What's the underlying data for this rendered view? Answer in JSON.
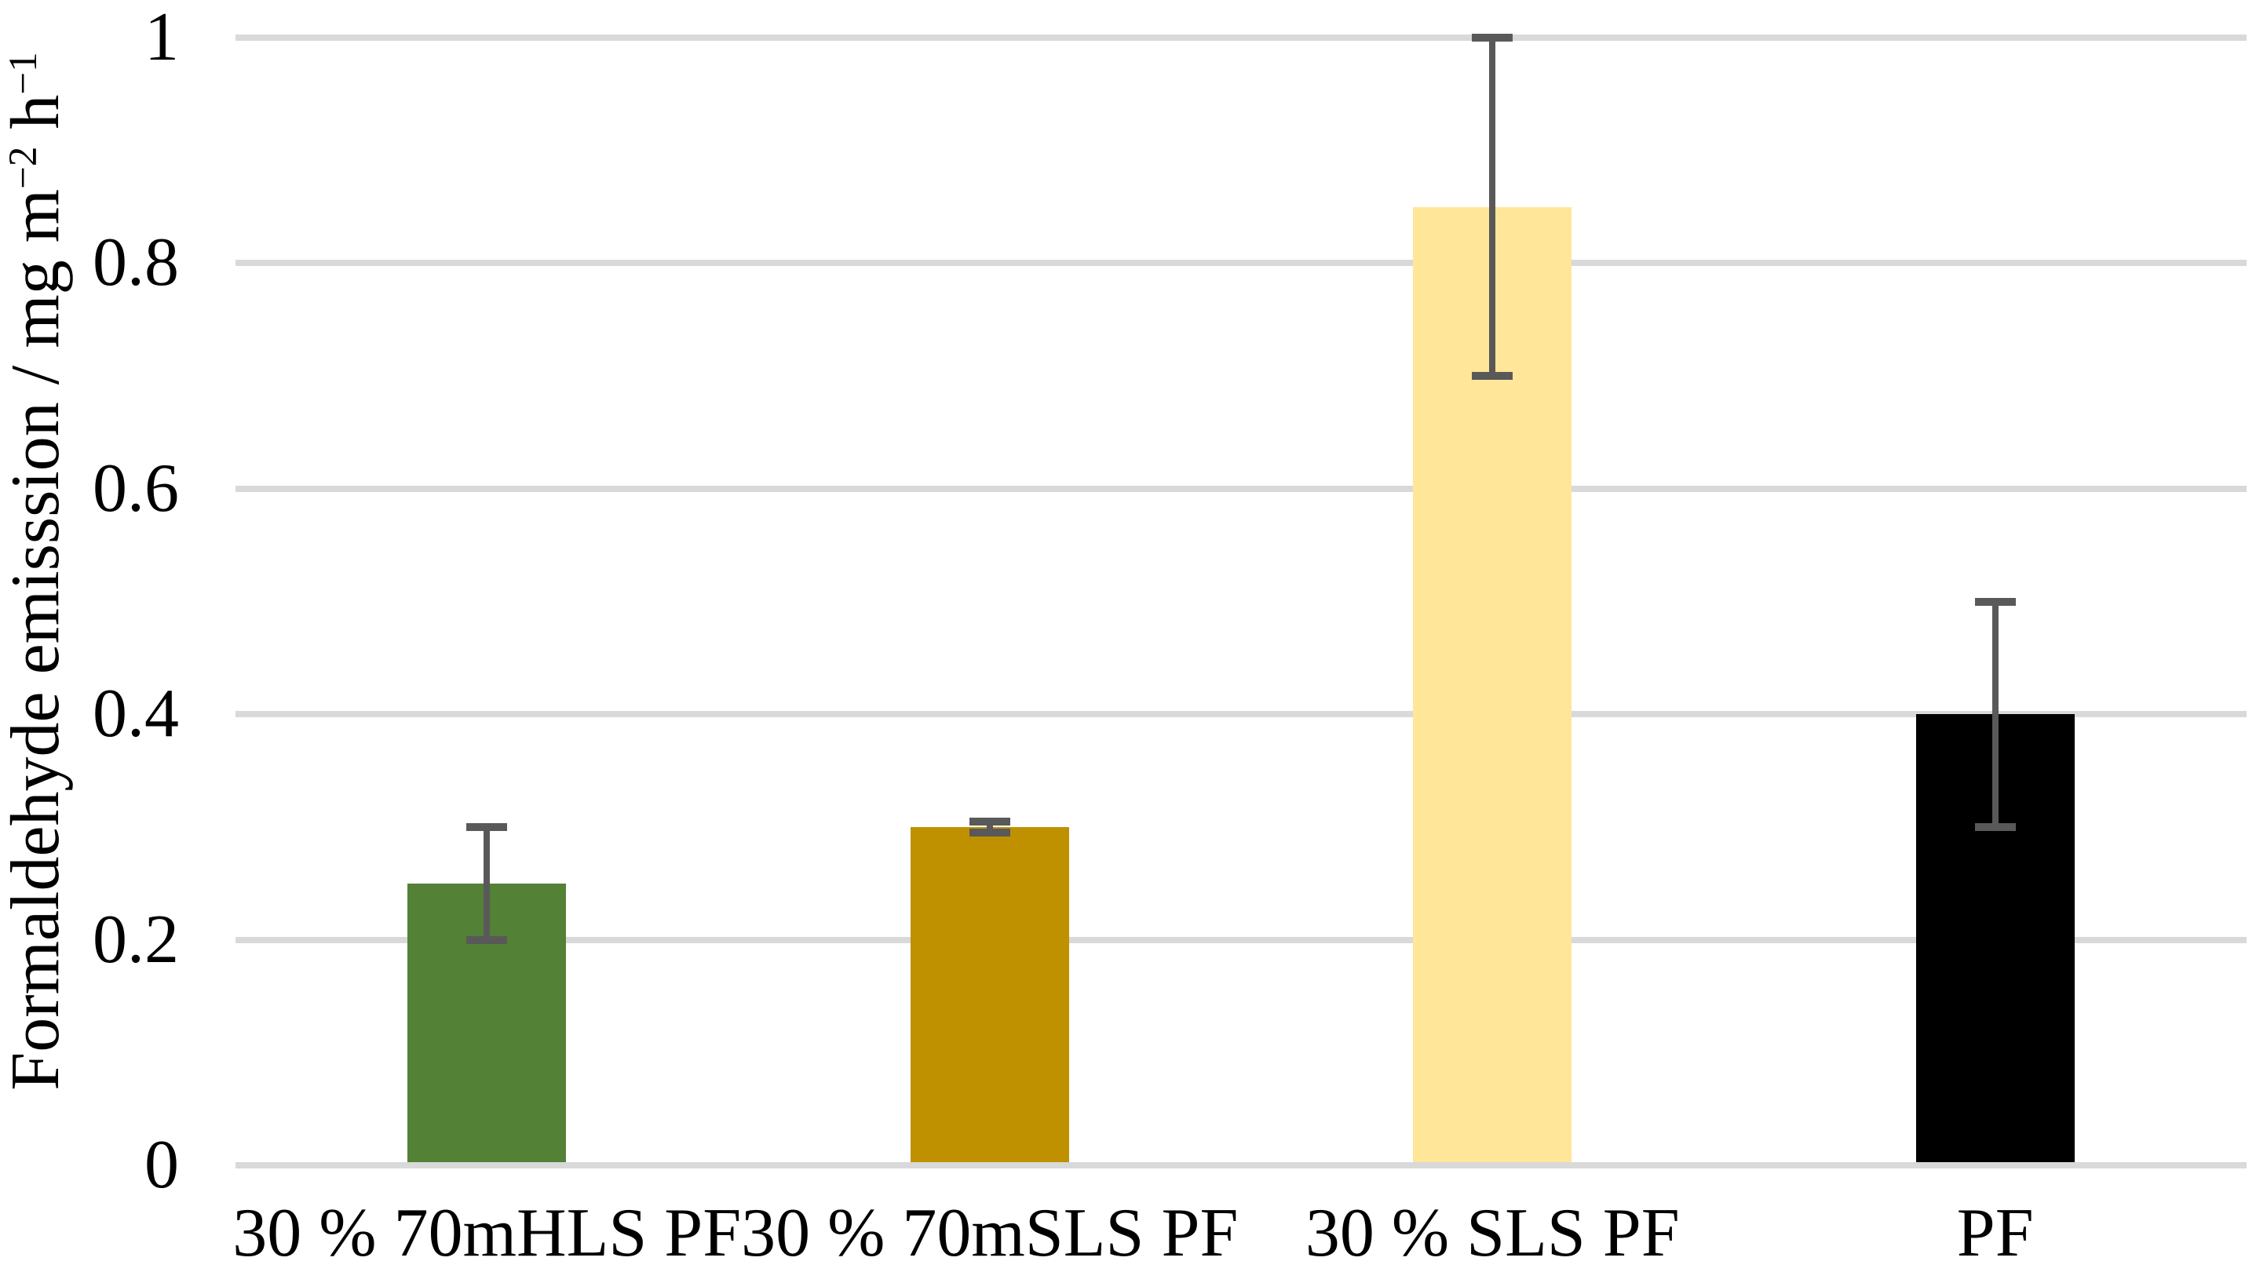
{
  "chart_data": {
    "type": "bar",
    "title": "",
    "xlabel": "",
    "ylabel": "Formaldehyde emisssion / mg m−2 h−1",
    "ylabel_parts": {
      "prefix": "Formaldehyde emisssion / mg m",
      "sup1": "−2",
      "mid": " h",
      "sup2": "−1"
    },
    "categories": [
      "30 % 70mHLS PF",
      "30 % 70mSLS PF",
      "30 % SLS PF",
      "PF"
    ],
    "values": [
      0.25,
      0.3,
      0.85,
      0.4
    ],
    "errors_low": [
      0.05,
      0.005,
      0.15,
      0.1
    ],
    "errors_high": [
      0.05,
      0.005,
      0.15,
      0.1
    ],
    "bar_colors": [
      "#538135",
      "#BF9000",
      "#FFE699",
      "#000000"
    ],
    "ylim": [
      0,
      1
    ],
    "yticks": [
      0,
      0.2,
      0.4,
      0.6,
      0.8,
      1
    ],
    "ytick_labels": [
      "0",
      "0.2",
      "0.4",
      "0.6",
      "0.8",
      "1"
    ],
    "grid": true,
    "gridline_color": "#D9D9D9",
    "error_bar_color": "#595959",
    "background_color": "#FFFFFF",
    "legend_position": "none"
  }
}
